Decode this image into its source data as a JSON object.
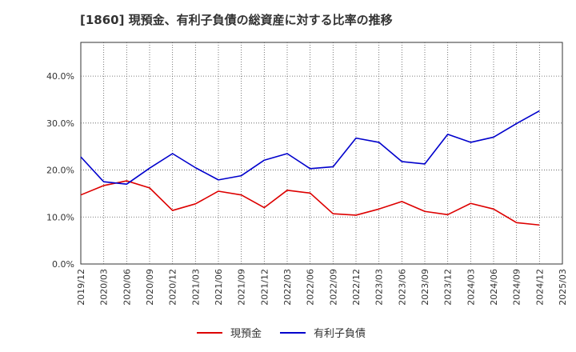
{
  "chart_data": {
    "type": "line",
    "title": "[1860]  現預金、有利子負債の総資産に対する比率の推移",
    "xlabel": "",
    "ylabel": "",
    "ylim": [
      0,
      0.4717
    ],
    "y_ticks": [
      0,
      0.1,
      0.2,
      0.3,
      0.4
    ],
    "y_tick_labels": [
      "0.0%",
      "10.0%",
      "20.0%",
      "30.0%",
      "40.0%"
    ],
    "categories": [
      "2019/12",
      "2020/03",
      "2020/06",
      "2020/09",
      "2020/12",
      "2021/03",
      "2021/06",
      "2021/09",
      "2021/12",
      "2022/03",
      "2022/06",
      "2022/09",
      "2022/12",
      "2023/03",
      "2023/06",
      "2023/09",
      "2023/12",
      "2024/03",
      "2024/06",
      "2024/09",
      "2024/12",
      "2025/03"
    ],
    "series": [
      {
        "name": "現預金",
        "color": "#dd0000",
        "values": [
          0.147,
          0.167,
          0.177,
          0.162,
          0.114,
          0.128,
          0.155,
          0.147,
          0.12,
          0.157,
          0.151,
          0.107,
          0.104,
          0.117,
          0.133,
          0.112,
          0.105,
          0.129,
          0.117,
          0.088,
          0.083,
          null
        ]
      },
      {
        "name": "有利子負債",
        "color": "#0000cc",
        "values": [
          0.228,
          0.175,
          0.17,
          0.204,
          0.235,
          0.205,
          0.179,
          0.188,
          0.221,
          0.235,
          0.203,
          0.207,
          0.268,
          0.259,
          0.218,
          0.213,
          0.276,
          0.259,
          0.27,
          0.299,
          0.326,
          null
        ]
      }
    ],
    "grid": true,
    "legend": "bottom-center"
  }
}
